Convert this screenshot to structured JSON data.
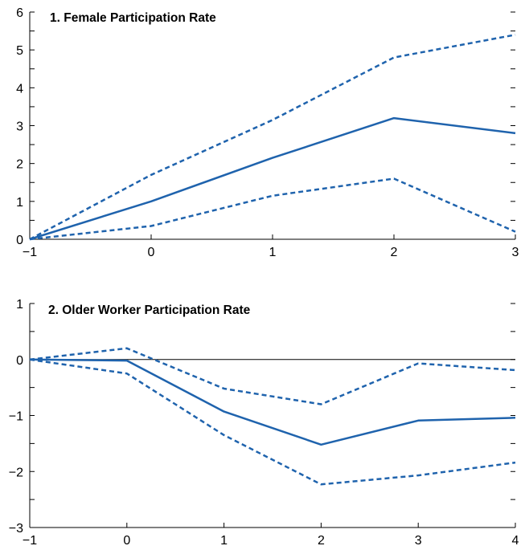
{
  "chart_data": [
    {
      "type": "line",
      "title": "1. Female Participation Rate",
      "x": [
        -1,
        0,
        1,
        2,
        3
      ],
      "xticks": [
        "−1",
        "0",
        "1",
        "2",
        "3"
      ],
      "ylim": [
        0,
        6
      ],
      "yticks": [
        "0",
        "1",
        "2",
        "3",
        "4",
        "5",
        "6"
      ],
      "zero_line": false,
      "series": [
        {
          "style": "solid",
          "values": [
            0,
            1.0,
            2.15,
            3.2,
            2.8
          ]
        },
        {
          "style": "dashed",
          "values": [
            0,
            1.7,
            3.15,
            4.8,
            5.4
          ]
        },
        {
          "style": "dashed",
          "values": [
            0,
            0.35,
            1.15,
            1.6,
            0.2
          ]
        }
      ]
    },
    {
      "type": "line",
      "title": "2. Older Worker Participation Rate",
      "x": [
        -1,
        0,
        1,
        2,
        3,
        4
      ],
      "xticks": [
        "−1",
        "0",
        "1",
        "2",
        "3",
        "4"
      ],
      "ylim": [
        -3,
        1
      ],
      "yticks": [
        "−3",
        "−2",
        "−1",
        "0",
        "1"
      ],
      "zero_line": true,
      "series": [
        {
          "style": "solid",
          "values": [
            0,
            -0.02,
            -0.93,
            -1.52,
            -1.09,
            -1.04
          ]
        },
        {
          "style": "dashed",
          "values": [
            0,
            0.2,
            -0.52,
            -0.8,
            -0.07,
            -0.19
          ]
        },
        {
          "style": "dashed",
          "values": [
            0,
            -0.25,
            -1.35,
            -2.23,
            -2.07,
            -1.84
          ]
        }
      ]
    }
  ],
  "colors": {
    "series": "#1f63ad",
    "axis": "#000000"
  }
}
